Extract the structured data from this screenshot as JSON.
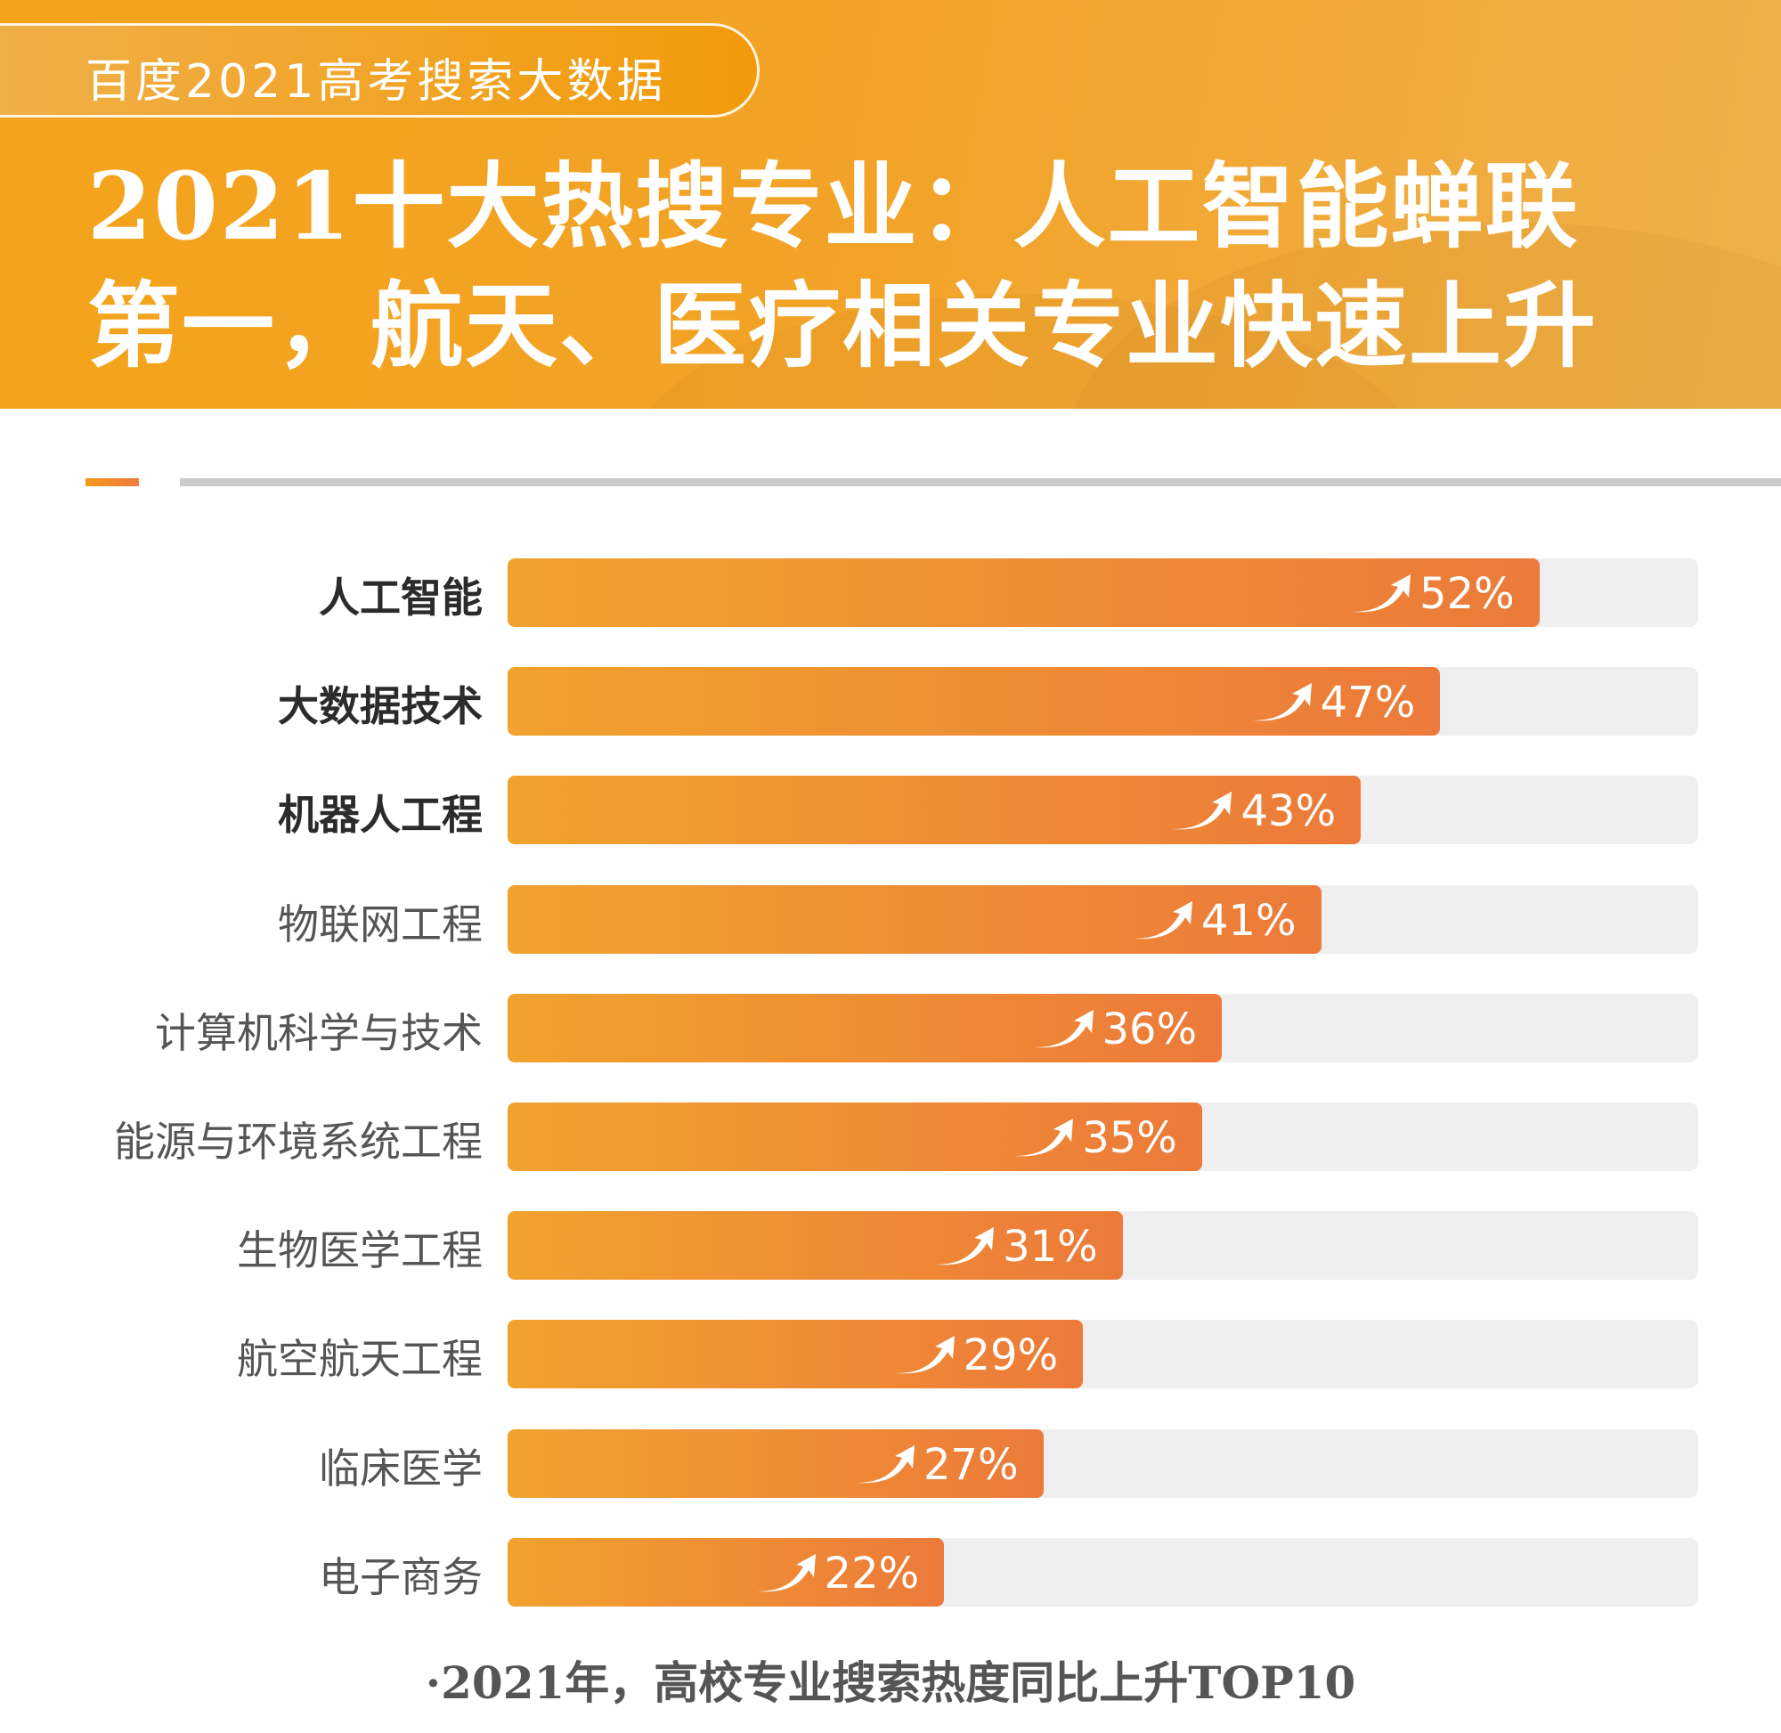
{
  "header": {
    "badge": "百度2021高考搜索大数据",
    "title_line1": "2021十大热搜专业：人工智能蝉联",
    "title_line2": "第一，航天、医疗相关专业快速上升"
  },
  "chart_data": {
    "type": "bar",
    "orientation": "horizontal",
    "title": "",
    "xlim": [
      0,
      60
    ],
    "grid": false,
    "categories": [
      "人工智能",
      "大数据技术",
      "机器人工程",
      "物联网工程",
      "计算机科学与技术",
      "能源与环境系统工程",
      "生物医学工程",
      "航空航天工程",
      "临床医学",
      "电子商务"
    ],
    "values": [
      52,
      47,
      43,
      41,
      36,
      35,
      31,
      29,
      27,
      22
    ],
    "value_labels": [
      "52%",
      "47%",
      "43%",
      "41%",
      "36%",
      "35%",
      "31%",
      "29%",
      "27%",
      "22%"
    ],
    "bold_categories": [
      "人工智能",
      "大数据技术",
      "机器人工程"
    ],
    "value_icon": "trend-up-arrow-icon",
    "colors": {
      "bar_start": "#f1a22e",
      "bar_end": "#ec7a3a",
      "track": "#efefef"
    }
  },
  "footer": {
    "caption": "·2021年，高校专业搜索热度同比上升TOP10"
  }
}
